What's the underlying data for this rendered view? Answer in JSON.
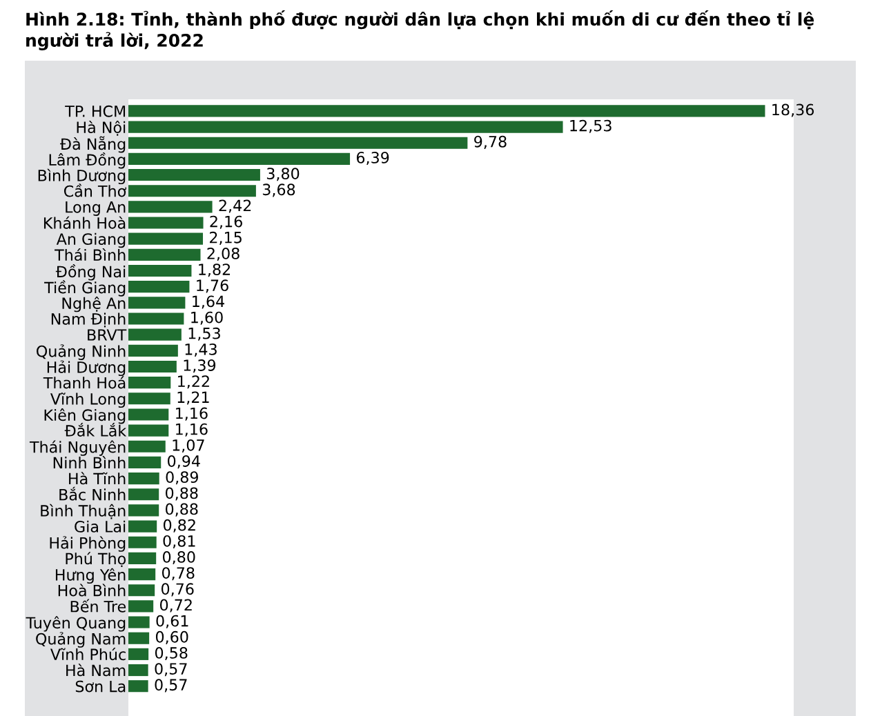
{
  "chart_data": {
    "type": "bar",
    "orientation": "horizontal",
    "title": "Hình 2.18: Tỉnh, thành phố được người dân lựa chọn khi muốn di cư đến theo tỉ lệ người trả lời, 2022",
    "categories": [
      "TP. HCM",
      "Hà Nội",
      "Đà Nẵng",
      "Lâm Đồng",
      "Bình Dương",
      "Cần Thơ",
      "Long An",
      "Khánh Hoà",
      "An Giang",
      "Thái Bình",
      "Đồng Nai",
      "Tiền Giang",
      "Nghệ An",
      "Nam Định",
      "BRVT",
      "Quảng Ninh",
      "Hải Dương",
      "Thanh Hoá",
      "Vĩnh Long",
      "Kiên Giang",
      "Đắk Lắk",
      "Thái Nguyên",
      "Ninh Bình",
      "Hà Tĩnh",
      "Bắc Ninh",
      "Bình Thuận",
      "Gia Lai",
      "Hải Phòng",
      "Phú Thọ",
      "Hưng Yên",
      "Hoà Bình",
      "Bến Tre",
      "Tuyên Quang",
      "Quảng Nam",
      "Vĩnh Phúc",
      "Hà Nam",
      "Sơn La"
    ],
    "values": [
      18.36,
      12.53,
      9.78,
      6.39,
      3.8,
      3.68,
      2.42,
      2.16,
      2.15,
      2.08,
      1.82,
      1.76,
      1.64,
      1.6,
      1.53,
      1.43,
      1.39,
      1.22,
      1.21,
      1.16,
      1.16,
      1.07,
      0.94,
      0.89,
      0.88,
      0.88,
      0.82,
      0.81,
      0.8,
      0.78,
      0.76,
      0.72,
      0.61,
      0.6,
      0.58,
      0.57,
      0.57
    ],
    "value_labels": [
      "18,36",
      "12,53",
      "9,78",
      "6,39",
      "3,80",
      "3,68",
      "2,42",
      "2,16",
      "2,15",
      "2,08",
      "1,82",
      "1,76",
      "1,64",
      "1,60",
      "1,53",
      "1,43",
      "1,39",
      "1,22",
      "1,21",
      "1,16",
      "1,16",
      "1,07",
      "0,94",
      "0,89",
      "0,88",
      "0,88",
      "0,82",
      "0,81",
      "0,80",
      "0,78",
      "0,76",
      "0,72",
      "0,61",
      "0,60",
      "0,58",
      "0,57",
      "0,57"
    ],
    "color": "#1e6b2f",
    "tick_labels": "y",
    "grid": false,
    "legend": false
  }
}
